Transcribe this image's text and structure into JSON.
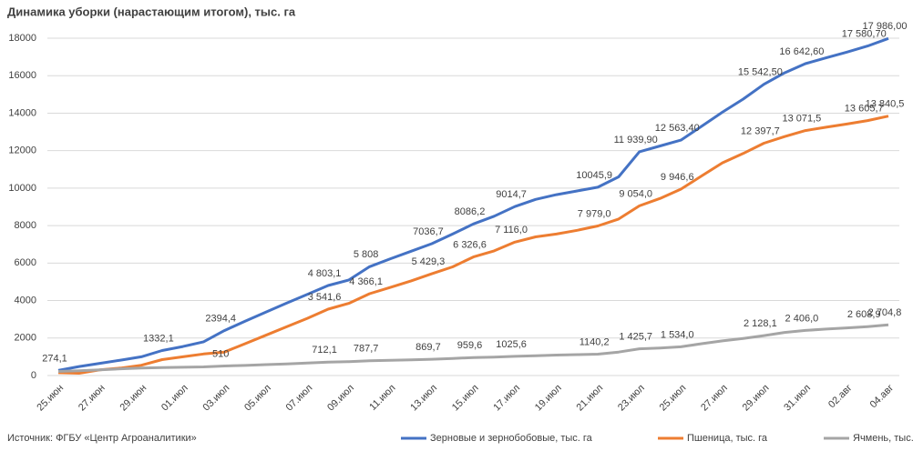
{
  "chart_data": {
    "type": "line",
    "title": "Динамика уборки (нарастающим итогом), тыс. га",
    "source": "Источник: ФГБУ «Центр Агроаналитики»",
    "categories": [
      "25.июн",
      null,
      "27.июн",
      null,
      "29.июн",
      null,
      "01.июл",
      null,
      "03.июл",
      null,
      "05.июл",
      null,
      "07.июл",
      null,
      "09.июл",
      null,
      "11.июл",
      null,
      "13.июл",
      null,
      "15.июл",
      null,
      "17.июл",
      null,
      "19.июл",
      null,
      "21.июл",
      null,
      "23.июл",
      null,
      "25.июл",
      null,
      "27.июл",
      null,
      "29.июл",
      null,
      "31.июл",
      null,
      "02.авг",
      null,
      "04.авг"
    ],
    "ylim": [
      0,
      18000
    ],
    "yticks": [
      0,
      2000,
      4000,
      6000,
      8000,
      10000,
      12000,
      14000,
      16000,
      18000
    ],
    "grid": true,
    "legend": "bottom-right",
    "series": [
      {
        "name": "Зерновые и зернобобовые, тыс. га",
        "color": "#4472c4",
        "values": [
          274.1,
          480,
          650,
          820,
          1000,
          1332.1,
          1550,
          1800,
          2394.4,
          2900,
          3380,
          3860,
          4330,
          4803.1,
          5100,
          5808,
          6230,
          6630,
          7036.7,
          7550,
          8086.2,
          8500,
          9014.7,
          9400,
          9650,
          9850,
          10045.9,
          10600,
          11939.9,
          12250,
          12563.4,
          13300,
          14050,
          14750,
          15542.5,
          16150,
          16642.6,
          16950,
          17260,
          17580.7,
          17986
        ],
        "value_labels": [
          "274,1",
          null,
          null,
          null,
          null,
          "1332,1",
          null,
          null,
          "2394,4",
          null,
          null,
          null,
          null,
          "4 803,1",
          null,
          "5 808",
          null,
          null,
          "7036,7",
          null,
          "8086,2",
          null,
          "9014,7",
          null,
          null,
          null,
          "10045,9",
          null,
          "11 939,90",
          null,
          "12 563,40",
          null,
          null,
          null,
          "15 542,50",
          null,
          "16 642,60",
          null,
          null,
          "17 580,70",
          "17 986,00"
        ]
      },
      {
        "name": "Пшеница, тыс. га",
        "color": "#ed7d31",
        "values": [
          150,
          120,
          300,
          400,
          550,
          850,
          1000,
          1150,
          1250,
          1700,
          2150,
          2600,
          3050,
          3541.6,
          3850,
          4366.1,
          4700,
          5050,
          5429.3,
          5800,
          6326.6,
          6650,
          7116,
          7400,
          7550,
          7750,
          7979,
          8350,
          9054,
          9450,
          9946.6,
          10650,
          11350,
          11850,
          12397.7,
          12750,
          13071.5,
          13250,
          13420,
          13605.7,
          13840.5
        ],
        "value_labels": [
          null,
          null,
          null,
          null,
          null,
          null,
          null,
          null,
          null,
          null,
          null,
          null,
          null,
          "3 541,6",
          null,
          "4 366,1",
          null,
          null,
          "5 429,3",
          null,
          "6 326,6",
          null,
          "7 116,0",
          null,
          null,
          null,
          "7 979,0",
          null,
          "9 054,0",
          null,
          "9 946,6",
          null,
          null,
          null,
          "12 397,7",
          null,
          "13 071,5",
          null,
          null,
          "13 605,7",
          "13 840,5"
        ]
      },
      {
        "name": "Ячмень, тыс. га",
        "color": "#a5a5a5",
        "values": [
          220,
          250,
          300,
          360,
          400,
          420,
          440,
          460,
          510,
          540,
          580,
          620,
          670,
          712.1,
          740,
          787.7,
          810,
          840,
          869.7,
          910,
          959.6,
          980,
          1025.6,
          1060,
          1090,
          1115,
          1140.2,
          1250,
          1425.7,
          1470,
          1534,
          1700,
          1850,
          1980,
          2128.1,
          2300,
          2406,
          2480,
          2540,
          2608.9,
          2704.8
        ],
        "value_labels": [
          null,
          null,
          null,
          null,
          null,
          null,
          null,
          null,
          "510",
          null,
          null,
          null,
          null,
          "712,1",
          null,
          "787,7",
          null,
          null,
          "869,7",
          null,
          "959,6",
          null,
          "1025,6",
          null,
          null,
          null,
          "1140,2",
          null,
          "1 425,7",
          null,
          "1 534,0",
          null,
          null,
          null,
          "2 128,1",
          null,
          "2 406,0",
          null,
          null,
          "2 608,9",
          "2 704,8"
        ]
      }
    ]
  }
}
